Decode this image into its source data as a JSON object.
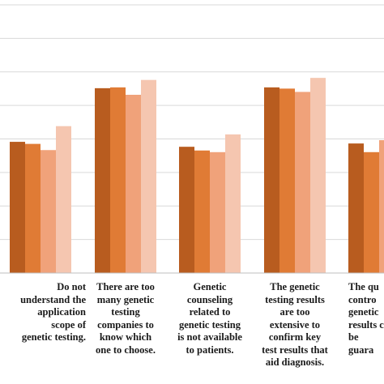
{
  "chart_data": {
    "type": "bar",
    "categories": [
      "Do not\nunderstand the\napplication\nscope of\ngenetic testing.",
      "There are too\nmany genetic\ntesting\ncompanies to\nknow which\none to choose.",
      "Genetic\ncounseling\nrelated to\ngenetic testing\nis not available\nto patients.",
      "The genetic\ntesting results\nare too\nextensive to\nconfirm key\ntest results that\naid diagnosis.",
      "The qu\ncontro\ngenetic\nresults c\nbe guara"
    ],
    "series": [
      {
        "values": [
          31.8,
          44.8,
          30.6,
          45.0,
          31.4
        ],
        "color": "#b85c1f"
      },
      {
        "values": [
          31.3,
          45.0,
          29.7,
          44.7,
          29.3
        ],
        "color": "#e07b35"
      },
      {
        "values": [
          29.8,
          43.2,
          29.3,
          43.9,
          32.2
        ],
        "color": "#f0a27a"
      },
      {
        "values": [
          35.6,
          46.8,
          33.6,
          47.3,
          0
        ],
        "color": "#f5c6b0"
      }
    ],
    "ylim": [
      0,
      65
    ],
    "grid": true,
    "legend": "none",
    "title": "",
    "xlabel": "",
    "ylabel": ""
  }
}
